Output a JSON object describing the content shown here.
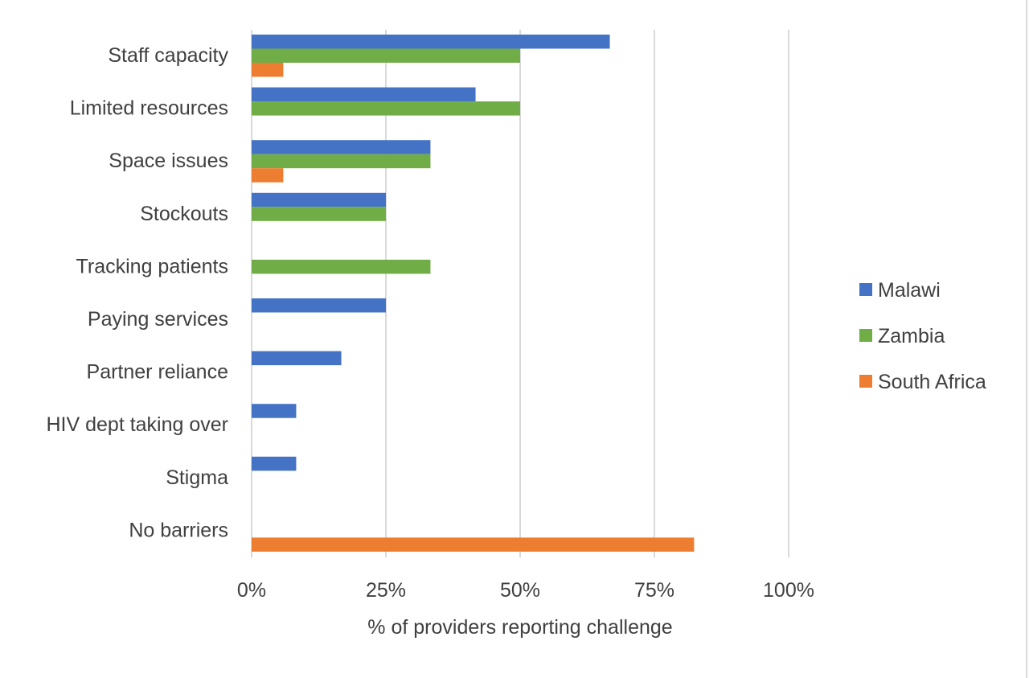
{
  "chart_data": {
    "type": "bar",
    "orientation": "horizontal",
    "categories": [
      "Staff capacity",
      "Limited resources",
      "Space issues",
      "Stockouts",
      "Tracking patients",
      "Paying services",
      "Partner reliance",
      "HIV dept taking over",
      "Stigma",
      "No barriers"
    ],
    "series": [
      {
        "name": "Malawi",
        "color": "#4472c4",
        "values": [
          0.667,
          0.417,
          0.333,
          0.25,
          0,
          0.25,
          0.167,
          0.083,
          0.083,
          0
        ]
      },
      {
        "name": "Zambia",
        "color": "#70ad47",
        "values": [
          0.5,
          0.5,
          0.333,
          0.25,
          0.333,
          0,
          0,
          0,
          0,
          0
        ]
      },
      {
        "name": "South Africa",
        "color": "#ed7d31",
        "values": [
          0.059,
          0,
          0.059,
          0,
          0,
          0,
          0,
          0,
          0,
          0.824
        ]
      }
    ],
    "x_ticks": [
      "0%",
      "25%",
      "50%",
      "75%",
      "100%"
    ],
    "x_tick_values": [
      0,
      0.25,
      0.5,
      0.75,
      1
    ],
    "xlim": [
      0,
      1
    ],
    "xlabel": "% of providers reporting challenge",
    "ylabel": "",
    "grid": true,
    "legend_position": "right"
  }
}
